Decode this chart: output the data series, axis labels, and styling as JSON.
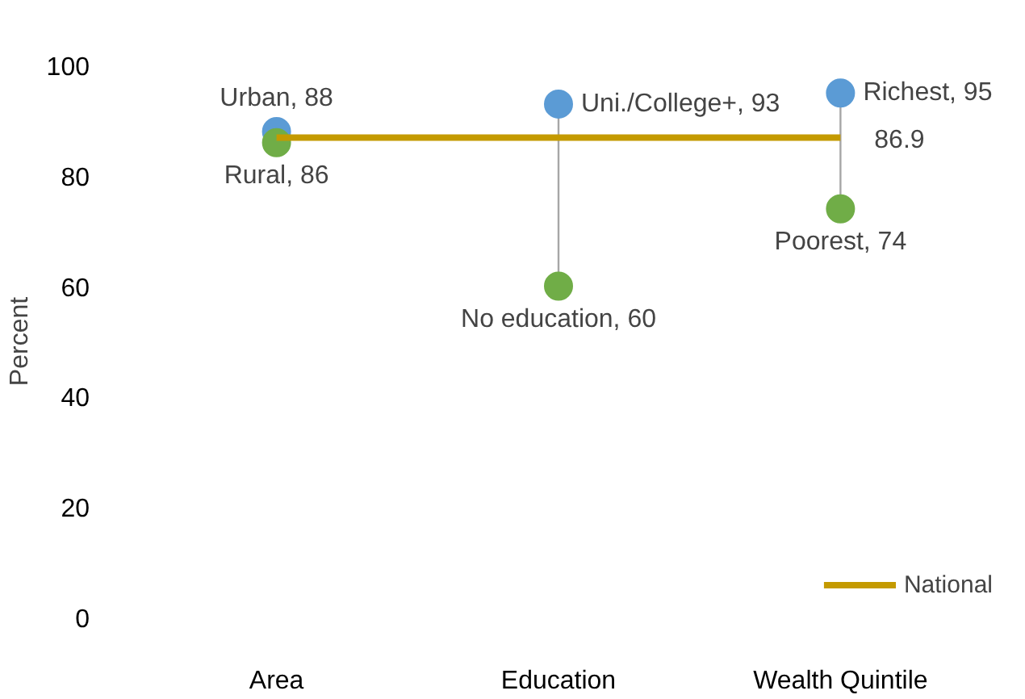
{
  "chart_data": {
    "type": "scatter",
    "ylabel": "Percent",
    "categories": [
      "Area",
      "Education",
      "Wealth Quintile"
    ],
    "ylim": [
      0,
      100
    ],
    "yticks": [
      0,
      20,
      40,
      60,
      80,
      100
    ],
    "grid": false,
    "legend": "bottom right",
    "marker": "circle",
    "series": [
      {
        "color": "#5b9bd5",
        "values": [
          88,
          93,
          95
        ],
        "value_labels": [
          "Urban, 88",
          "Uni./College+, 93",
          "Richest, 95"
        ]
      },
      {
        "color": "#70ad47",
        "values": [
          86,
          60,
          74
        ],
        "value_labels": [
          "Rural, 86",
          "No education, 60",
          "Poorest, 74"
        ]
      },
      {
        "type": "line",
        "name": "National",
        "marker": "none",
        "color": "#c49a00",
        "values": [
          86.9,
          86.9,
          86.9
        ],
        "value_labels": [
          null,
          null,
          "86.9"
        ]
      }
    ]
  }
}
